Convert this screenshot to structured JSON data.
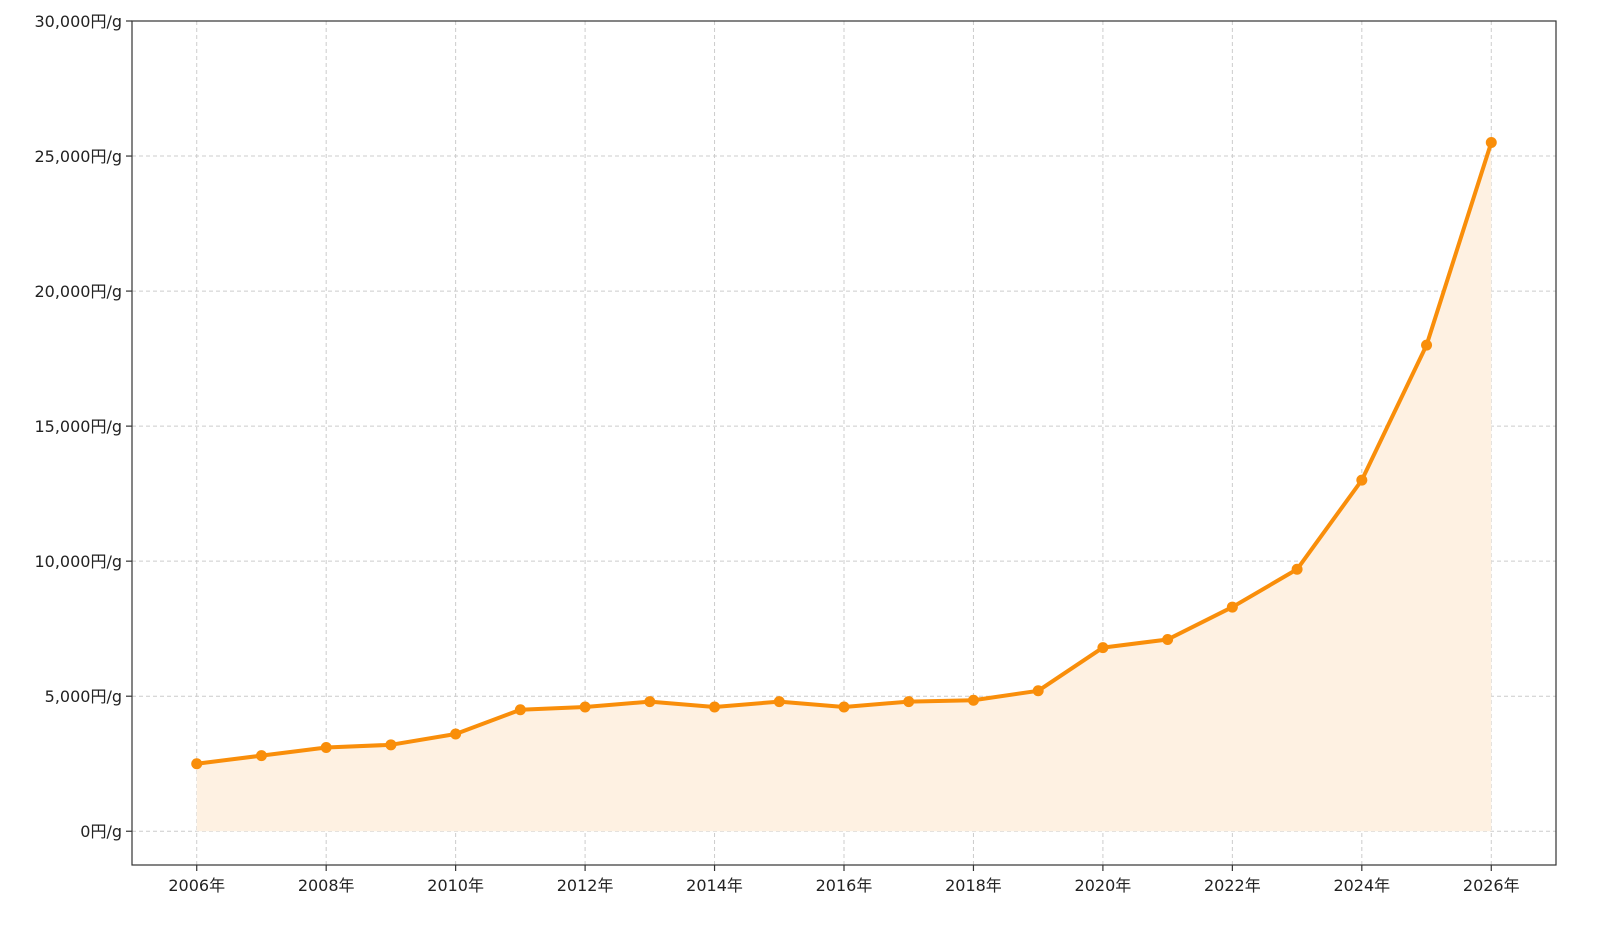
{
  "colors": {
    "line": "#f98e0a",
    "area_fill": "#fef1e2",
    "grid": "#cccccc",
    "axis": "#333333",
    "text": "#222222"
  },
  "chart_data": {
    "type": "area",
    "title": "",
    "xlabel": "",
    "ylabel": "",
    "x": [
      2006,
      2007,
      2008,
      2009,
      2010,
      2011,
      2012,
      2013,
      2014,
      2015,
      2016,
      2017,
      2018,
      2019,
      2020,
      2021,
      2022,
      2023,
      2024,
      2025,
      2026
    ],
    "series": [
      {
        "values": [
          2500,
          2800,
          3100,
          3200,
          3600,
          4500,
          4600,
          4800,
          4600,
          4800,
          4600,
          4800,
          4850,
          5200,
          6800,
          7100,
          8300,
          9700,
          13000,
          18000,
          25500
        ]
      }
    ],
    "xlim": [
      2005,
      2027
    ],
    "ylim": [
      -1250,
      30000
    ],
    "x_ticks": [
      2006,
      2008,
      2010,
      2012,
      2014,
      2016,
      2018,
      2020,
      2022,
      2024,
      2026
    ],
    "x_tick_labels": [
      "2006年",
      "2008年",
      "2010年",
      "2012年",
      "2014年",
      "2016年",
      "2018年",
      "2020年",
      "2022年",
      "2024年",
      "2026年"
    ],
    "y_ticks": [
      0,
      5000,
      10000,
      15000,
      20000,
      25000,
      30000
    ],
    "y_tick_labels": [
      "0円/g",
      "5,000円/g",
      "10,000円/g",
      "15,000円/g",
      "20,000円/g",
      "25,000円/g",
      "30,000円/g"
    ],
    "grid": true,
    "markers": true,
    "legend": "none"
  }
}
